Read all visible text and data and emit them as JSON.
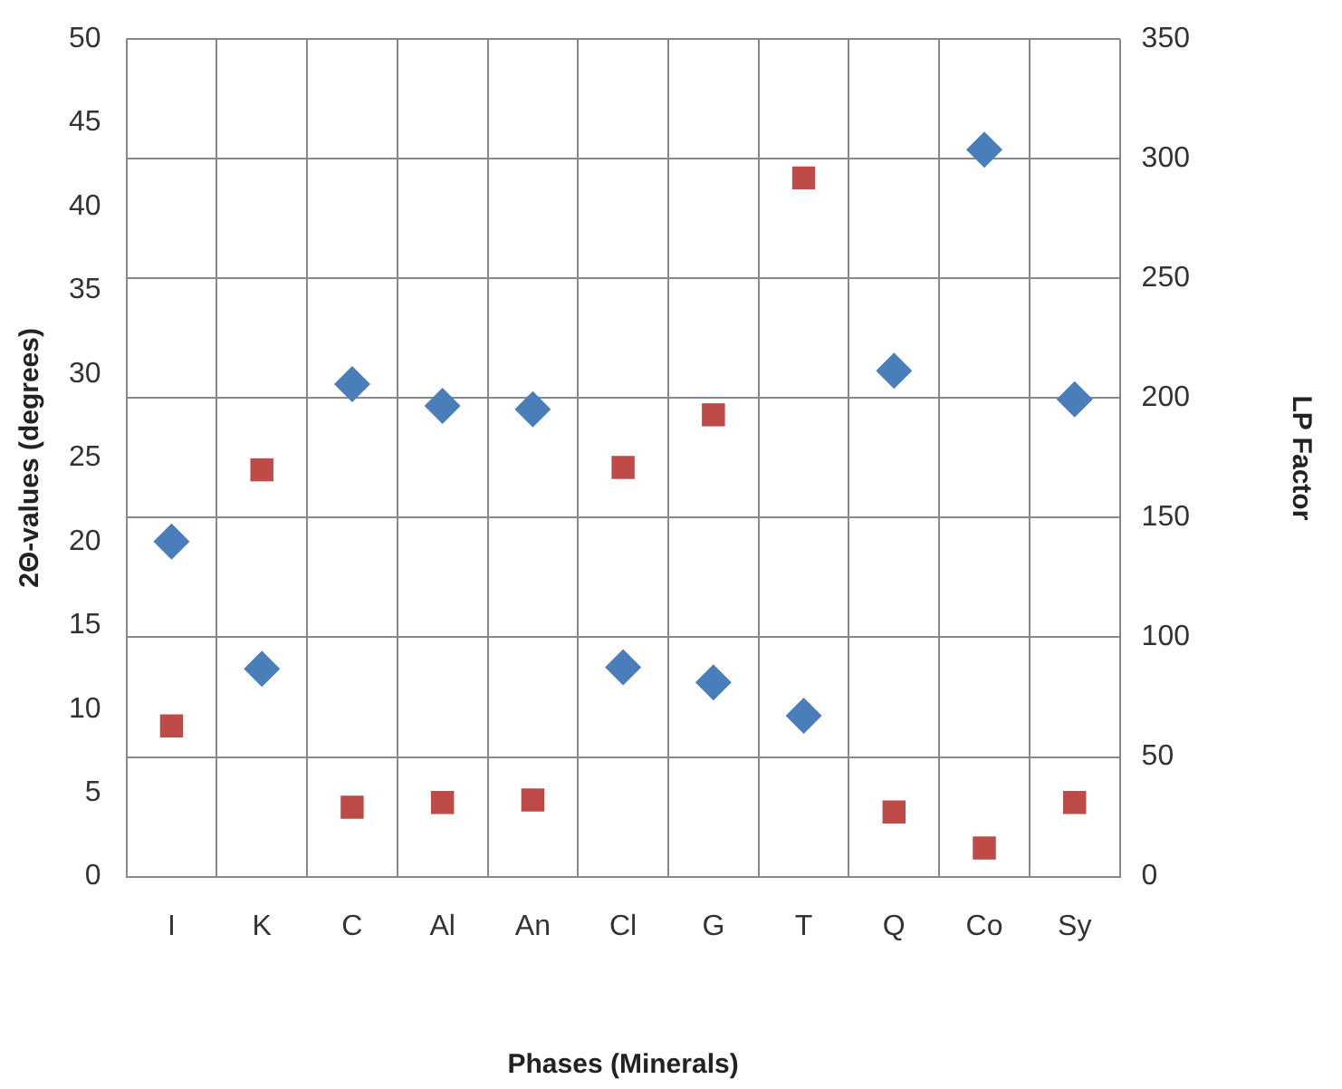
{
  "chart_data": {
    "type": "scatter",
    "xlabel": "Phases (Minerals)",
    "ylabel": "2Θ-values (degrees)",
    "y2label": "LP Factor",
    "categories": [
      "I",
      "K",
      "C",
      "Al",
      "An",
      "Cl",
      "G",
      "T",
      "Q",
      "Co",
      "Sy"
    ],
    "series": [
      {
        "type": "scatter",
        "marker": "diamond",
        "color": "#4a7ebb",
        "values": [
          20.0,
          12.4,
          29.4,
          28.1,
          27.9,
          12.5,
          11.6,
          9.6,
          30.2,
          43.4,
          28.5
        ]
      },
      {
        "type": "scatter",
        "marker": "square",
        "color": "#be4b48",
        "axis": "y2",
        "values": [
          63,
          170,
          29,
          31,
          32,
          171,
          193,
          292,
          27,
          12,
          31
        ]
      }
    ],
    "ylim": [
      0,
      50
    ],
    "yticks": [
      0,
      5,
      10,
      15,
      20,
      25,
      30,
      35,
      40,
      45,
      50
    ],
    "y2lim": [
      0,
      350
    ],
    "y2ticks": [
      0,
      50,
      100,
      150,
      200,
      250,
      300,
      350
    ],
    "grid": true,
    "legend": false
  }
}
